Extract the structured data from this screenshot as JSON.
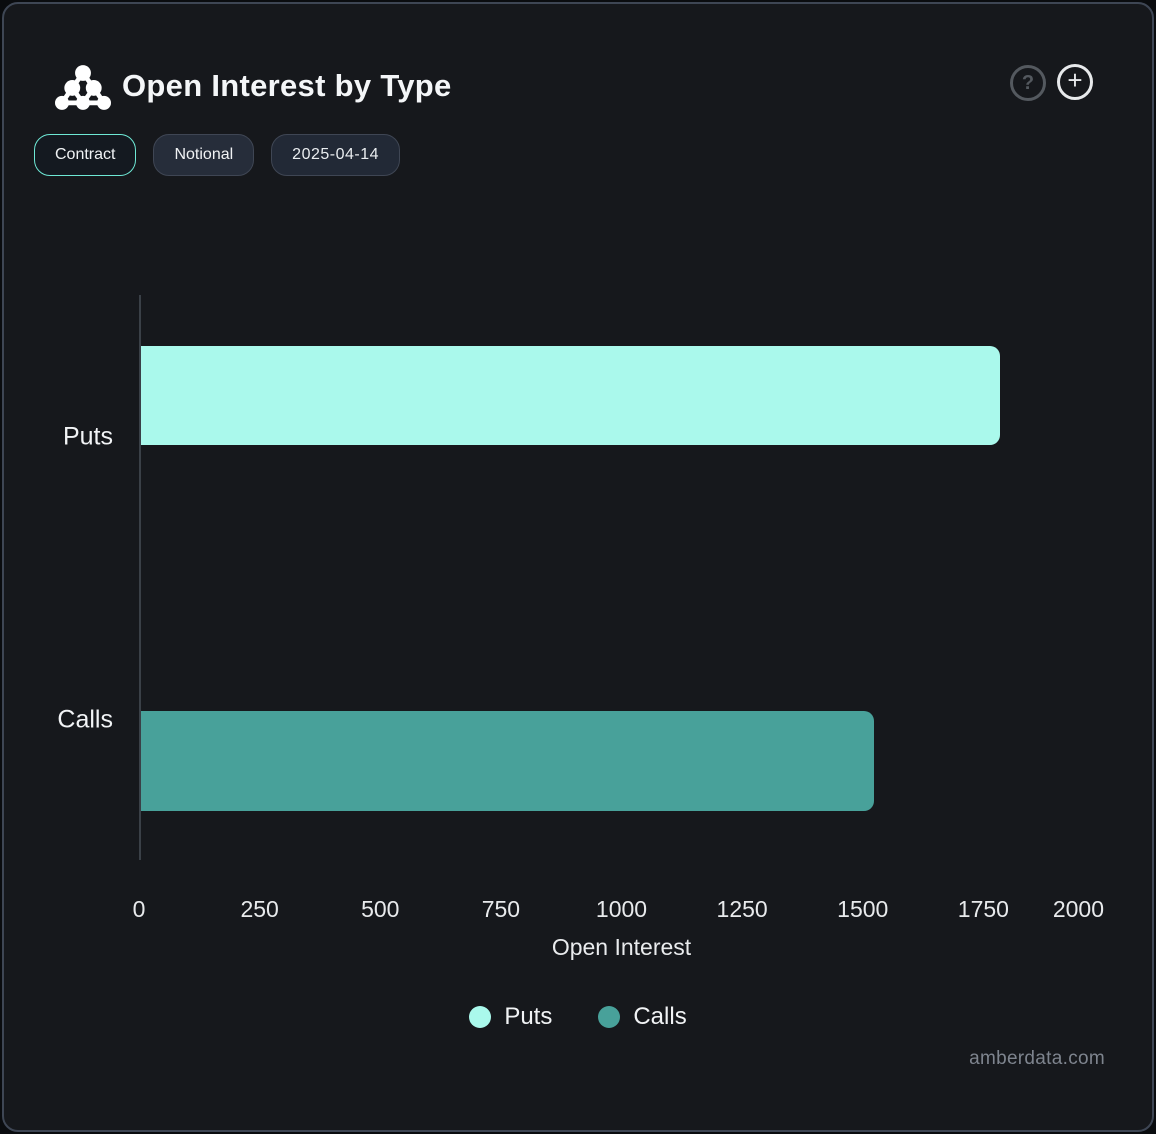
{
  "header": {
    "title": "Open Interest by Type",
    "icon": "cluster-icon",
    "help_label": "?",
    "add_label": "+"
  },
  "controls": {
    "contract": "Contract",
    "notional": "Notional",
    "date": "2025-04-14"
  },
  "chart_data": {
    "type": "bar",
    "orientation": "horizontal",
    "title": "Open Interest by Type",
    "categories": [
      "Puts",
      "Calls"
    ],
    "series": [
      {
        "name": "Puts",
        "color": "#aaf9ec",
        "values": [
          1780,
          null
        ]
      },
      {
        "name": "Calls",
        "color": "#48a19a",
        "values": [
          null,
          1520
        ]
      }
    ],
    "xlabel": "Open Interest",
    "xlim": [
      0,
      2000
    ],
    "xticks": [
      0,
      250,
      500,
      750,
      1000,
      1250,
      1500,
      1750,
      2000
    ],
    "grid": false,
    "legend_position": "bottom",
    "legend": [
      "Puts",
      "Calls"
    ]
  },
  "theme": {
    "accent": "#6ee8d5",
    "puts_color": "#aaf9ec",
    "calls_color": "#48a19a",
    "card_bg": "#16181c",
    "card_border": "#3e4654"
  },
  "watermark": "amberdata.com"
}
